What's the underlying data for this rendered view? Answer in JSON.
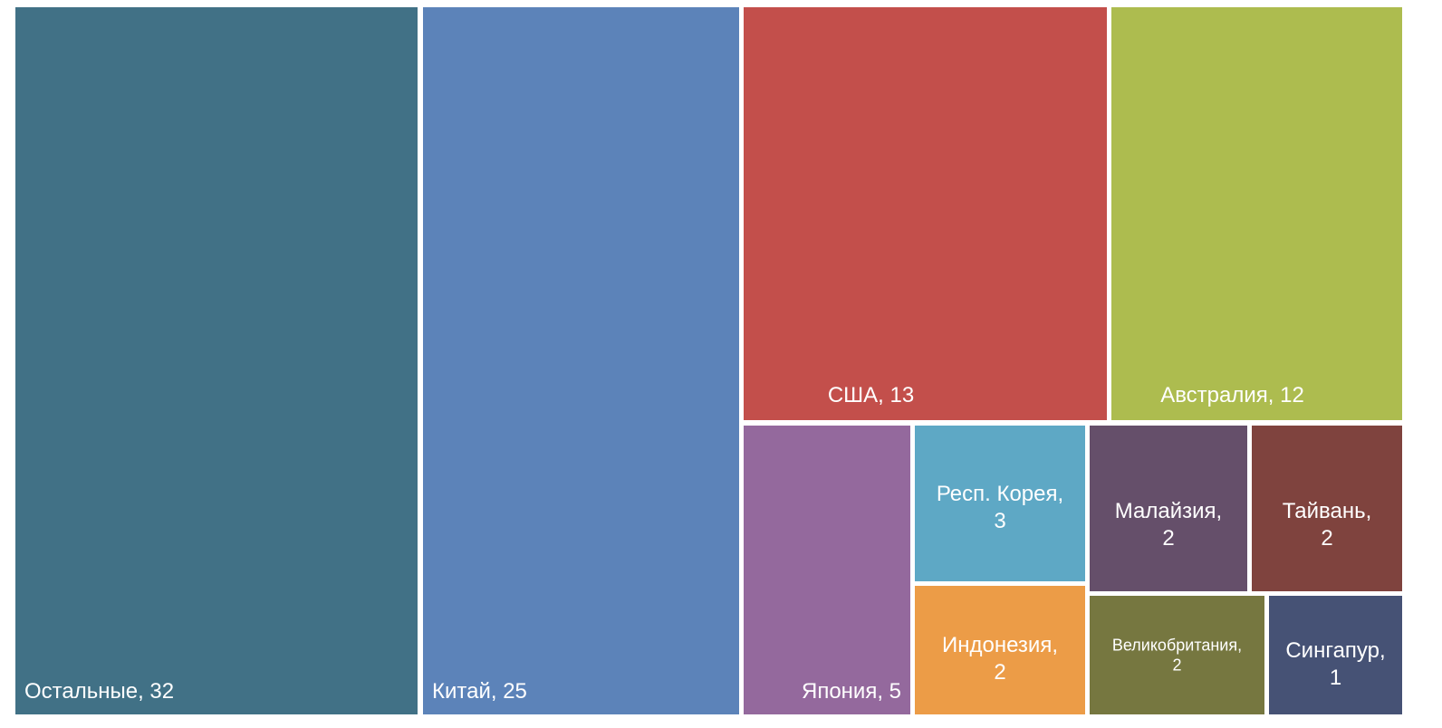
{
  "chart_data": {
    "type": "treemap",
    "items": [
      {
        "name": "Остальные",
        "value": 32,
        "label": "Остальные, 32",
        "color": "#417186"
      },
      {
        "name": "Китай",
        "value": 25,
        "label": "Китай, 25",
        "color": "#5c83b9"
      },
      {
        "name": "США",
        "value": 13,
        "label": "США, 13",
        "color": "#c34f4b"
      },
      {
        "name": "Австралия",
        "value": 12,
        "label": "Австралия, 12",
        "color": "#adbc4f"
      },
      {
        "name": "Япония",
        "value": 5,
        "label": "Япония, 5",
        "color": "#94699d"
      },
      {
        "name": "Респ. Корея",
        "value": 3,
        "label": "Респ. Корея, 3",
        "color": "#5ea8c5"
      },
      {
        "name": "Малайзия",
        "value": 2,
        "label": "Малайзия, 2",
        "color": "#654f6a"
      },
      {
        "name": "Тайвань",
        "value": 2,
        "label": "Тайвань, 2",
        "color": "#7f433e"
      },
      {
        "name": "Индонезия",
        "value": 2,
        "label": "Индонезия, 2",
        "color": "#ec9c47"
      },
      {
        "name": "Великобритания",
        "value": 2,
        "label": "Великобритания, 2",
        "color": "#767740"
      },
      {
        "name": "Сингапур",
        "value": 1,
        "label": "Сингапур, 1",
        "color": "#465275"
      }
    ]
  }
}
